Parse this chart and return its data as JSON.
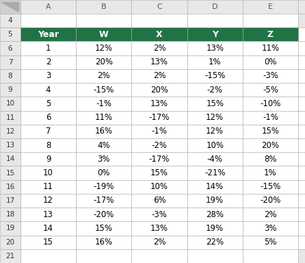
{
  "col_labels": [
    "Year",
    "W",
    "X",
    "Y",
    "Z"
  ],
  "col_letters": [
    "A",
    "B",
    "C",
    "D",
    "E"
  ],
  "display_row_numbers": [
    4,
    5,
    6,
    7,
    8,
    9,
    10,
    11,
    12,
    13,
    14,
    15,
    16,
    17,
    18,
    19,
    20,
    21
  ],
  "rows": [
    [
      "1",
      "12%",
      "2%",
      "13%",
      "11%"
    ],
    [
      "2",
      "20%",
      "13%",
      "1%",
      "0%"
    ],
    [
      "3",
      "2%",
      "2%",
      "-15%",
      "-3%"
    ],
    [
      "4",
      "-15%",
      "20%",
      "-2%",
      "-5%"
    ],
    [
      "5",
      "-1%",
      "13%",
      "15%",
      "-10%"
    ],
    [
      "6",
      "11%",
      "-17%",
      "12%",
      "-1%"
    ],
    [
      "7",
      "16%",
      "-1%",
      "12%",
      "15%"
    ],
    [
      "8",
      "4%",
      "-2%",
      "10%",
      "20%"
    ],
    [
      "9",
      "3%",
      "-17%",
      "-4%",
      "8%"
    ],
    [
      "10",
      "0%",
      "15%",
      "-21%",
      "1%"
    ],
    [
      "11",
      "-19%",
      "10%",
      "14%",
      "-15%"
    ],
    [
      "12",
      "-17%",
      "6%",
      "19%",
      "-20%"
    ],
    [
      "13",
      "-20%",
      "-3%",
      "28%",
      "2%"
    ],
    [
      "14",
      "15%",
      "13%",
      "19%",
      "3%"
    ],
    [
      "15",
      "16%",
      "2%",
      "22%",
      "5%"
    ]
  ],
  "header_bg": "#217346",
  "header_fg": "#FFFFFF",
  "cell_bg": "#FFFFFF",
  "cell_fg": "#000000",
  "grid_color": "#AAAAAA",
  "row_num_bg": "#E8E8E8",
  "col_letter_bg": "#E8E8E8",
  "corner_bg": "#D0D0D0",
  "fig_bg": "#FFFFFF",
  "extra_col_bg": "#E8E8E8",
  "data_fontsize": 8.5,
  "header_fontsize": 9.0,
  "row_num_fontsize": 7.5,
  "col_letter_fontsize": 8.0
}
